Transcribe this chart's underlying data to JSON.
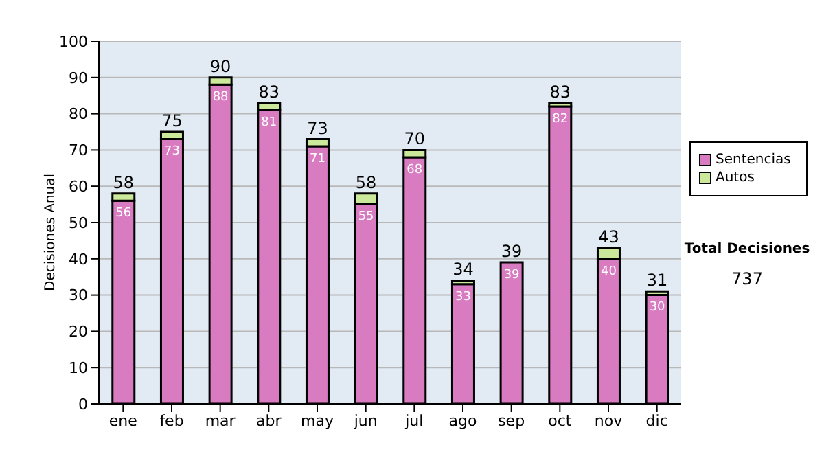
{
  "chart_data": {
    "type": "bar",
    "stacked": true,
    "ylabel": "Decisiones Anual",
    "categories": [
      "ene",
      "feb",
      "mar",
      "abr",
      "may",
      "jun",
      "jul",
      "ago",
      "sep",
      "oct",
      "nov",
      "dic"
    ],
    "series": [
      {
        "name": "Sentencias",
        "color": "#d97bc0",
        "values": [
          56,
          73,
          88,
          81,
          71,
          55,
          68,
          33,
          39,
          82,
          40,
          30
        ],
        "value_labels": [
          "56",
          "73",
          "88",
          "81",
          "71",
          "55",
          "68",
          "33",
          "39",
          "82",
          "40",
          "30"
        ]
      },
      {
        "name": "Autos",
        "color": "#cce89a",
        "values": [
          2,
          2,
          2,
          2,
          2,
          3,
          2,
          1,
          0,
          1,
          3,
          1
        ]
      }
    ],
    "totals": [
      "58",
      "75",
      "90",
      "83",
      "73",
      "58",
      "70",
      "34",
      "39",
      "83",
      "43",
      "31"
    ],
    "ylim": [
      0,
      100
    ],
    "yticks": [
      0,
      10,
      20,
      30,
      40,
      50,
      60,
      70,
      80,
      90,
      100
    ],
    "grid": "y",
    "legend": "right",
    "annotations": [
      "Total Decisiones",
      "737"
    ]
  }
}
